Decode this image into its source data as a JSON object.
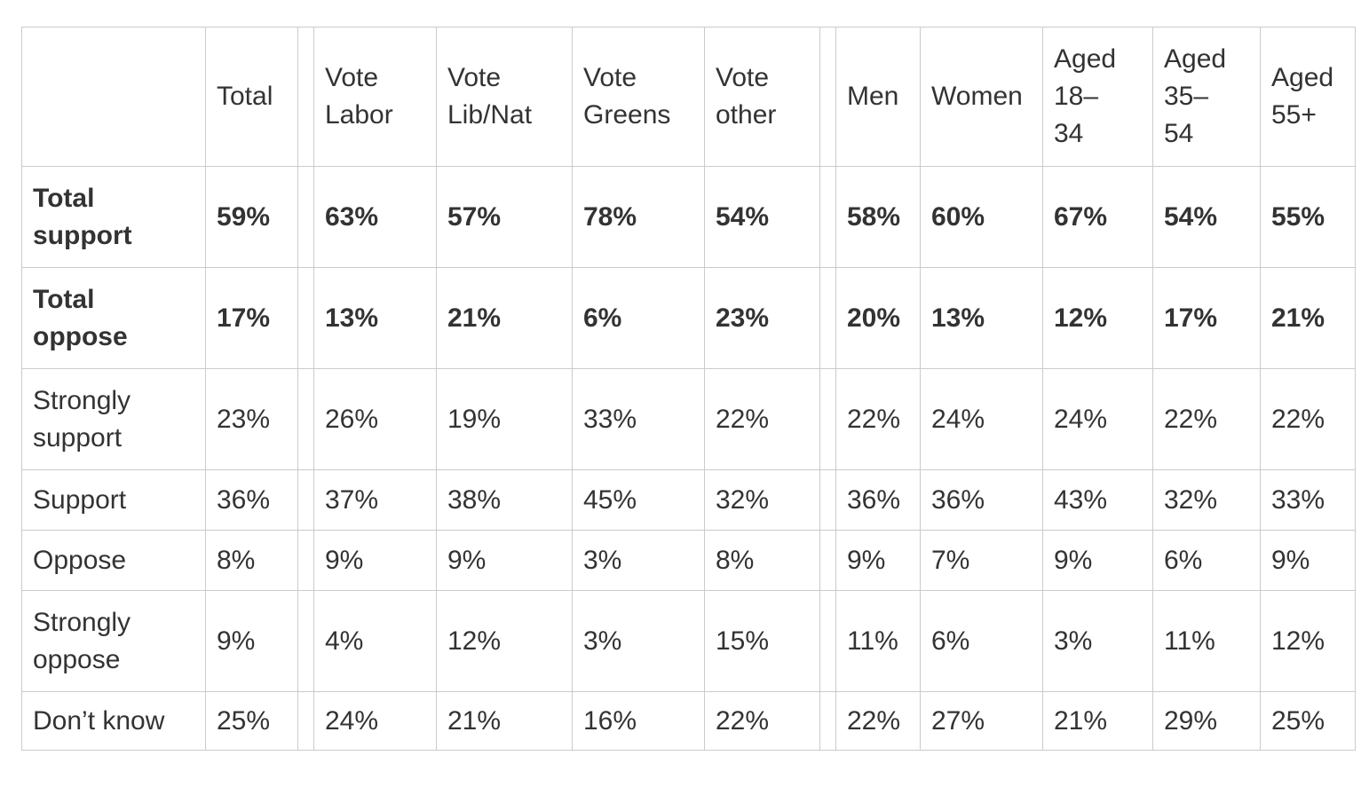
{
  "colors": {
    "background": "#ffffff",
    "text": "#333333",
    "border": "#cbcbcb"
  },
  "chart_data": {
    "type": "table",
    "title": "",
    "unit": "%",
    "columns": [
      "Total",
      "Vote Labor",
      "Vote Lib/Nat",
      "Vote Greens",
      "Vote other",
      "Men",
      "Women",
      "Aged 18–34",
      "Aged 35–54",
      "Aged 55+"
    ],
    "column_keys": [
      "total",
      "vote-labor",
      "vote-lib-nat",
      "vote-greens",
      "vote-other",
      "men",
      "women",
      "aged-18-34",
      "aged-35-54",
      "aged-55-plus"
    ],
    "rows": [
      {
        "label": "Total support",
        "bold": true,
        "values": [
          "59%",
          "63%",
          "57%",
          "78%",
          "54%",
          "58%",
          "60%",
          "67%",
          "54%",
          "55%"
        ]
      },
      {
        "label": "Total oppose",
        "bold": true,
        "values": [
          "17%",
          "13%",
          "21%",
          "6%",
          "23%",
          "20%",
          "13%",
          "12%",
          "17%",
          "21%"
        ]
      },
      {
        "label": "Strongly support",
        "bold": false,
        "values": [
          "23%",
          "26%",
          "19%",
          "33%",
          "22%",
          "22%",
          "24%",
          "24%",
          "22%",
          "22%"
        ]
      },
      {
        "label": "Support",
        "bold": false,
        "values": [
          "36%",
          "37%",
          "38%",
          "45%",
          "32%",
          "36%",
          "36%",
          "43%",
          "32%",
          "33%"
        ]
      },
      {
        "label": "Oppose",
        "bold": false,
        "values": [
          "8%",
          "9%",
          "9%",
          "3%",
          "8%",
          "9%",
          "7%",
          "9%",
          "6%",
          "9%"
        ]
      },
      {
        "label": "Strongly oppose",
        "bold": false,
        "values": [
          "9%",
          "4%",
          "12%",
          "3%",
          "15%",
          "11%",
          "6%",
          "3%",
          "11%",
          "12%"
        ]
      },
      {
        "label": "Don’t know",
        "bold": false,
        "values": [
          "25%",
          "24%",
          "21%",
          "16%",
          "22%",
          "22%",
          "27%",
          "21%",
          "29%",
          "25%"
        ]
      }
    ]
  }
}
